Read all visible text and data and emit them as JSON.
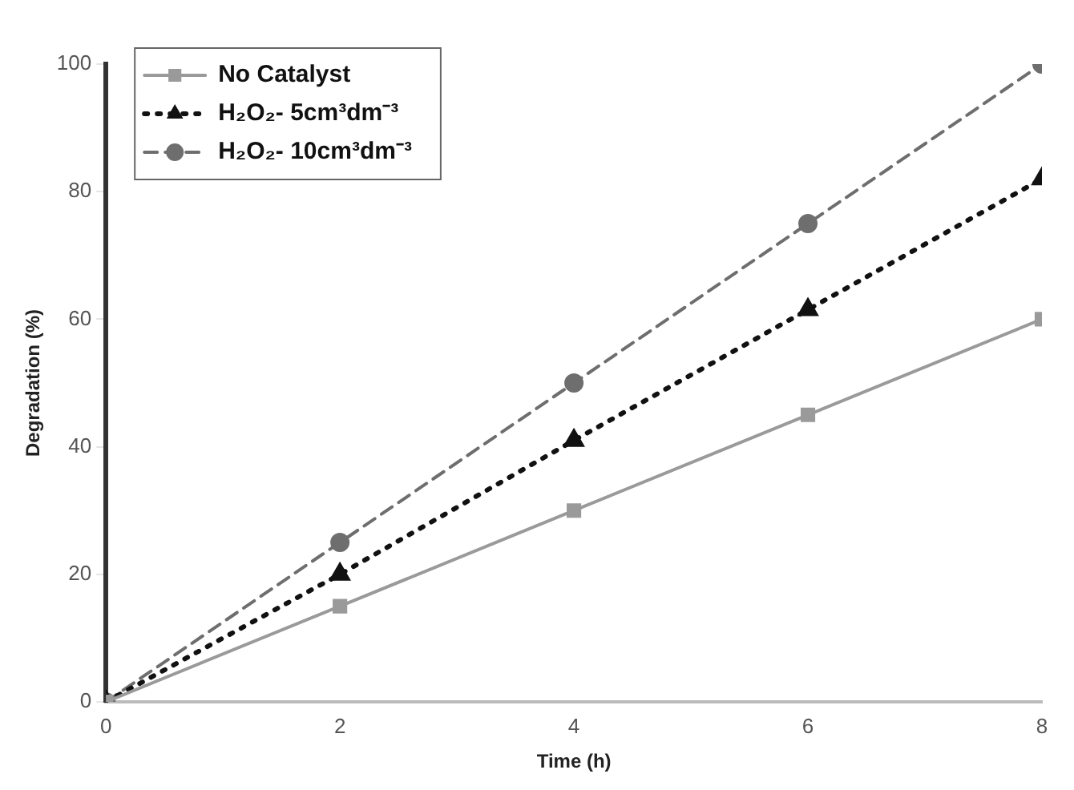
{
  "chart_data": {
    "type": "line",
    "xlabel": "Time (h)",
    "ylabel": "Degradation (%)",
    "x": [
      0,
      2,
      4,
      6,
      8
    ],
    "xlim": [
      0,
      8
    ],
    "xticks": [
      0,
      2,
      4,
      6,
      8
    ],
    "ylim": [
      0,
      100
    ],
    "yticks": [
      0,
      20,
      40,
      60,
      80,
      100
    ],
    "grid": false,
    "legend": "top left",
    "series": [
      {
        "name": "No Catalyst",
        "color": "#9a9a9a",
        "values": [
          0,
          15,
          30,
          45,
          60
        ],
        "marker": "square",
        "line_style": "solid"
      },
      {
        "name": "H₂O₂- 5cm³dm⁻³",
        "color": "#111111",
        "values": [
          0,
          20,
          41,
          61.5,
          82
        ],
        "marker": "triangle",
        "line_style": "dotted"
      },
      {
        "name": "H₂O₂- 10cm³dm⁻³",
        "color": "#6e6e6e",
        "values": [
          0,
          25,
          50,
          75,
          100
        ],
        "marker": "circle",
        "line_style": "dashed"
      }
    ]
  }
}
